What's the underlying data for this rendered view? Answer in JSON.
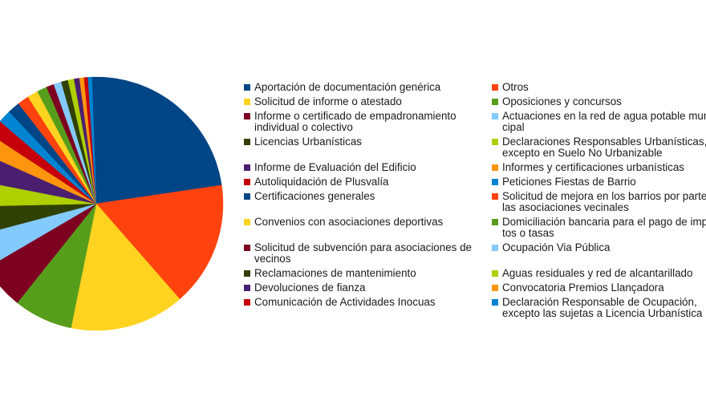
{
  "chart_data": {
    "type": "pie",
    "start_angle_deg": -92,
    "direction": "clockwise",
    "slices": [
      {
        "label": "Aportación de documentación genérica",
        "value": 23.8,
        "color": "#004586"
      },
      {
        "label": "Otros",
        "value": 16.3,
        "color": "#ff420e"
      },
      {
        "label": "Solicitud de informe o atestado",
        "value": 15.0,
        "color": "#ffd320"
      },
      {
        "label": "Oposiciones y concursos",
        "value": 7.7,
        "color": "#579d1c"
      },
      {
        "label": "Informe o certificado de empadronamiento\nindividual o colectivo",
        "value": 6.0,
        "color": "#7e0021"
      },
      {
        "label": "Actuaciones en la red de agua potable muni-\ncipal",
        "value": 4.4,
        "color": "#83caff"
      },
      {
        "label": "Licencias Urbanísticas",
        "value": 3.9,
        "color": "#314004"
      },
      {
        "label": "Declaraciones Responsables Urbanísticas,\nexcepto en Suelo No Urbanizable",
        "value": 3.5,
        "color": "#aecf00"
      },
      {
        "label": "Informe de Evaluación del Edificio",
        "value": 3.7,
        "color": "#4b1f6f"
      },
      {
        "label": "Informes y certificaciones urbanísticas",
        "value": 2.6,
        "color": "#ff950e"
      },
      {
        "label": "Autoliquidación de Plusvalía",
        "value": 2.1,
        "color": "#c5000b"
      },
      {
        "label": "Peticiones Fiestas de Barrio",
        "value": 1.7,
        "color": "#0084d1"
      },
      {
        "label": "Certificaciones generales",
        "value": 1.6,
        "color": "#004586"
      },
      {
        "label": "Solicitud de mejora en los barrios por parte de\nlas asociaciones vecinales",
        "value": 1.5,
        "color": "#ff420e"
      },
      {
        "label": "Convenios con asociaciones deportivas",
        "value": 1.4,
        "color": "#ffd320"
      },
      {
        "label": "Domiciliación bancaria para el pago de impues-\ntos o tasas",
        "value": 1.3,
        "color": "#579d1c"
      },
      {
        "label": "Solicitud de subvención para asociaciones de\nvecinos",
        "value": 1.0,
        "color": "#7e0021"
      },
      {
        "label": "Ocupación Via Pública",
        "value": 1.0,
        "color": "#83caff"
      },
      {
        "label": "Reclamaciones de mantenimiento",
        "value": 0.9,
        "color": "#314004"
      },
      {
        "label": "Aguas residuales y red de alcantarillado",
        "value": 0.8,
        "color": "#aecf00"
      },
      {
        "label": "Devoluciones de fianza",
        "value": 0.7,
        "color": "#4b1f6f"
      },
      {
        "label": "Convocatoria Premios Llançadora",
        "value": 0.6,
        "color": "#ff950e"
      },
      {
        "label": "Comunicación de Actividades Inocuas",
        "value": 0.5,
        "color": "#c5000b"
      },
      {
        "label": "Declaración Responsable de Ocupación,\nexcepto las sujetas a Licencia Urbanística",
        "value": 0.5,
        "color": "#0084d1"
      }
    ],
    "legend": {
      "placement": "right",
      "columns": 2
    }
  }
}
